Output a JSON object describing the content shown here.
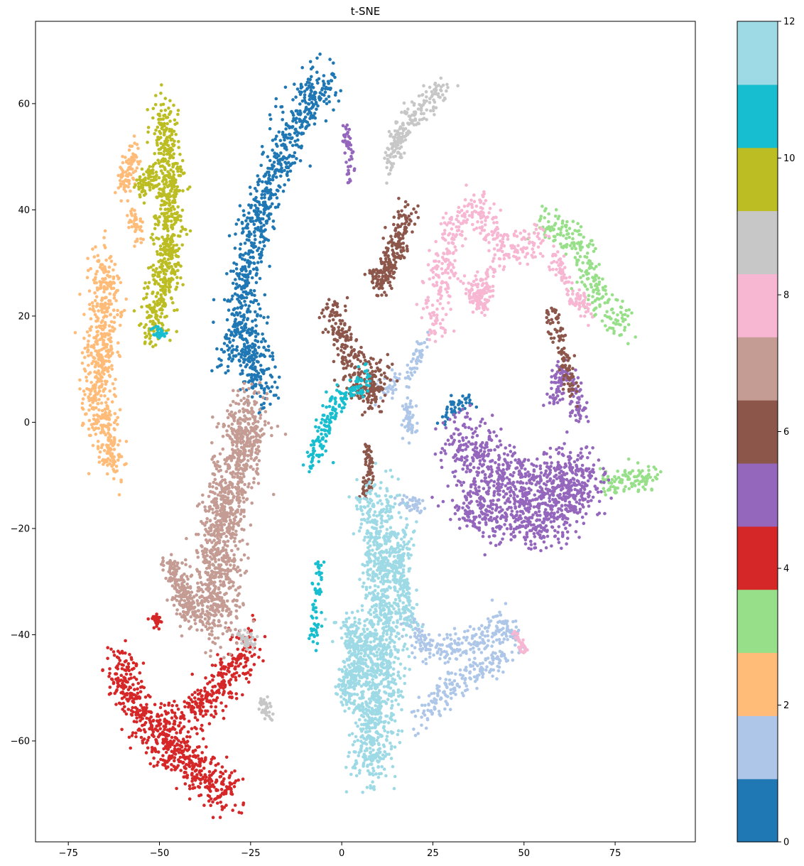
{
  "chart_data": {
    "type": "scatter",
    "title": "t-SNE",
    "xlabel": "",
    "ylabel": "",
    "xlim": [
      -84,
      97
    ],
    "ylim": [
      -79,
      75.5
    ],
    "xticks": [
      -75,
      -50,
      -25,
      0,
      25,
      50,
      75
    ],
    "yticks": [
      -60,
      -40,
      -20,
      0,
      20,
      40,
      60
    ],
    "xtick_labels": [
      "−75",
      "−50",
      "−25",
      "0",
      "25",
      "50",
      "75"
    ],
    "ytick_labels": [
      "−60",
      "−40",
      "−20",
      "0",
      "20",
      "40",
      "60"
    ],
    "grid": false,
    "colorbar": {
      "colormap": "tab20",
      "range": [
        0,
        12
      ],
      "ticks": [
        0,
        2,
        4,
        6,
        8,
        10,
        12
      ],
      "tick_labels": [
        "0",
        "2",
        "4",
        "6",
        "8",
        "10",
        "12"
      ],
      "colors": [
        "#1f77b4",
        "#aec7e8",
        "#ffbb78",
        "#98df8a",
        "#d62728",
        "#9467bd",
        "#8c564b",
        "#c49c94",
        "#f7b6d2",
        "#c7c7c7",
        "#bcbd22",
        "#17becf",
        "#9edae5"
      ]
    },
    "clusters": [
      {
        "label": 0,
        "n": 900,
        "path": [
          [
            -22,
            5
          ],
          [
            -25,
            15
          ],
          [
            -27,
            25
          ],
          [
            -24,
            35
          ],
          [
            -20,
            45
          ],
          [
            -15,
            52
          ],
          [
            -10,
            60
          ],
          [
            -3,
            65
          ]
        ],
        "width": 4.2
      },
      {
        "label": 0,
        "n": 60,
        "path": [
          [
            -33,
            10
          ],
          [
            -30,
            15
          ],
          [
            -27,
            18
          ]
        ],
        "width": 3
      },
      {
        "label": 0,
        "n": 45,
        "path": [
          [
            27,
            -1
          ],
          [
            30,
            3
          ],
          [
            36,
            4
          ]
        ],
        "width": 1.3
      },
      {
        "label": 1,
        "n": 80,
        "path": [
          [
            23,
            16
          ],
          [
            20,
            10
          ],
          [
            14,
            7
          ],
          [
            8,
            5
          ]
        ],
        "width": 1.8
      },
      {
        "label": 1,
        "n": 60,
        "path": [
          [
            18,
            3
          ],
          [
            19,
            -2
          ]
        ],
        "width": 1.5
      },
      {
        "label": 1,
        "n": 40,
        "path": [
          [
            16,
            -15
          ],
          [
            22,
            -16
          ]
        ],
        "width": 1.6
      },
      {
        "label": 1,
        "n": 260,
        "path": [
          [
            18,
            -38
          ],
          [
            25,
            -43
          ],
          [
            35,
            -42
          ],
          [
            45,
            -38
          ],
          [
            48,
            -42
          ]
        ],
        "width": 2.8
      },
      {
        "label": 1,
        "n": 180,
        "path": [
          [
            20,
            -57
          ],
          [
            27,
            -51
          ],
          [
            37,
            -47
          ],
          [
            45,
            -44
          ]
        ],
        "width": 2.6
      },
      {
        "label": 2,
        "n": 600,
        "path": [
          [
            -62,
            -8
          ],
          [
            -65,
            -1
          ],
          [
            -68,
            5
          ],
          [
            -65,
            12
          ],
          [
            -67,
            18
          ],
          [
            -64,
            24
          ],
          [
            -66,
            30
          ]
        ],
        "width": 3.8
      },
      {
        "label": 2,
        "n": 90,
        "path": [
          [
            -60,
            44
          ],
          [
            -58,
            48
          ],
          [
            -57,
            52
          ]
        ],
        "width": 2
      },
      {
        "label": 2,
        "n": 40,
        "path": [
          [
            -58,
            40
          ],
          [
            -55,
            34
          ]
        ],
        "width": 1.6
      },
      {
        "label": 3,
        "n": 250,
        "path": [
          [
            54,
            37
          ],
          [
            62,
            36
          ],
          [
            67,
            30
          ],
          [
            71,
            22
          ],
          [
            78,
            18
          ]
        ],
        "width": 3
      },
      {
        "label": 3,
        "n": 110,
        "path": [
          [
            72,
            -11
          ],
          [
            80,
            -11
          ],
          [
            86,
            -11
          ]
        ],
        "width": 2.4
      },
      {
        "label": 4,
        "n": 600,
        "path": [
          [
            -62,
            -45
          ],
          [
            -55,
            -55
          ],
          [
            -48,
            -61
          ],
          [
            -38,
            -67
          ],
          [
            -30,
            -70
          ]
        ],
        "width": 4.2
      },
      {
        "label": 4,
        "n": 330,
        "path": [
          [
            -47,
            -58
          ],
          [
            -40,
            -54
          ],
          [
            -33,
            -50
          ],
          [
            -28,
            -44
          ],
          [
            -25,
            -41
          ]
        ],
        "width": 3.8
      },
      {
        "label": 4,
        "n": 30,
        "path": [
          [
            -52,
            -36
          ],
          [
            -50,
            -38
          ]
        ],
        "width": 1.2
      },
      {
        "label": 5,
        "n": 1150,
        "path": [
          [
            30,
            -2
          ],
          [
            40,
            -8
          ],
          [
            50,
            -12
          ],
          [
            62,
            -10
          ],
          [
            67,
            -12
          ],
          [
            55,
            -18
          ],
          [
            40,
            -17
          ],
          [
            33,
            -14
          ]
        ],
        "width": 5.5
      },
      {
        "label": 5,
        "n": 140,
        "path": [
          [
            58,
            4
          ],
          [
            61,
            10
          ],
          [
            64,
            6
          ],
          [
            66,
            0
          ]
        ],
        "width": 2.3
      },
      {
        "label": 5,
        "n": 45,
        "path": [
          [
            1,
            56
          ],
          [
            2,
            49
          ],
          [
            2,
            45
          ]
        ],
        "width": 1.2
      },
      {
        "label": 6,
        "n": 300,
        "path": [
          [
            -3,
            22
          ],
          [
            1,
            15
          ],
          [
            4,
            8
          ],
          [
            8,
            4
          ],
          [
            10,
            11
          ]
        ],
        "width": 3.4
      },
      {
        "label": 6,
        "n": 230,
        "path": [
          [
            10,
            25
          ],
          [
            14,
            32
          ],
          [
            18,
            39
          ]
        ],
        "width": 2.8
      },
      {
        "label": 6,
        "n": 110,
        "path": [
          [
            57,
            21
          ],
          [
            60,
            15
          ],
          [
            62,
            9
          ],
          [
            64,
            5
          ]
        ],
        "width": 2
      },
      {
        "label": 6,
        "n": 70,
        "path": [
          [
            7,
            -4
          ],
          [
            8,
            -10
          ],
          [
            6,
            -14
          ]
        ],
        "width": 1.5
      },
      {
        "label": 7,
        "n": 1100,
        "path": [
          [
            -25,
            3
          ],
          [
            -28,
            -6
          ],
          [
            -32,
            -16
          ],
          [
            -34,
            -26
          ],
          [
            -36,
            -34
          ],
          [
            -33,
            -38
          ]
        ],
        "width": 5.5
      },
      {
        "label": 7,
        "n": 200,
        "path": [
          [
            -47,
            -26
          ],
          [
            -44,
            -32
          ],
          [
            -40,
            -37
          ]
        ],
        "width": 2.8
      },
      {
        "label": 8,
        "n": 380,
        "path": [
          [
            25,
            17
          ],
          [
            27,
            26
          ],
          [
            30,
            36
          ],
          [
            38,
            41
          ],
          [
            43,
            34
          ],
          [
            46,
            32
          ],
          [
            54,
            35
          ]
        ],
        "width": 3.4
      },
      {
        "label": 8,
        "n": 140,
        "path": [
          [
            35,
            26
          ],
          [
            38,
            22
          ],
          [
            40,
            28
          ]
        ],
        "width": 2.3
      },
      {
        "label": 8,
        "n": 100,
        "path": [
          [
            58,
            32
          ],
          [
            63,
            24
          ],
          [
            68,
            21
          ]
        ],
        "width": 1.8
      },
      {
        "label": 8,
        "n": 30,
        "path": [
          [
            48,
            -40
          ],
          [
            50,
            -43
          ]
        ],
        "width": 1.2
      },
      {
        "label": 9,
        "n": 200,
        "path": [
          [
            13,
            48
          ],
          [
            17,
            56
          ],
          [
            22,
            59
          ],
          [
            28,
            63
          ]
        ],
        "width": 2.4
      },
      {
        "label": 9,
        "n": 40,
        "path": [
          [
            -22,
            -52
          ],
          [
            -20,
            -55
          ]
        ],
        "width": 1.3
      },
      {
        "label": 9,
        "n": 40,
        "path": [
          [
            -28,
            -40
          ],
          [
            -24,
            -42
          ]
        ],
        "width": 1.3
      },
      {
        "label": 10,
        "n": 680,
        "path": [
          [
            -52,
            17
          ],
          [
            -50,
            24
          ],
          [
            -47,
            31
          ],
          [
            -48,
            38
          ],
          [
            -47,
            45
          ],
          [
            -48,
            52
          ],
          [
            -49,
            59
          ]
        ],
        "width": 3.6
      },
      {
        "label": 10,
        "n": 80,
        "path": [
          [
            -55,
            44
          ],
          [
            -52,
            47
          ]
        ],
        "width": 1.7
      },
      {
        "label": 11,
        "n": 180,
        "path": [
          [
            -9,
            -8
          ],
          [
            -6,
            -3
          ],
          [
            -2,
            3
          ],
          [
            3,
            6
          ],
          [
            8,
            9
          ]
        ],
        "width": 2.3
      },
      {
        "label": 11,
        "n": 60,
        "path": [
          [
            -6,
            -27
          ],
          [
            -7,
            -32
          ],
          [
            -7,
            -38
          ],
          [
            -8,
            -42
          ]
        ],
        "width": 1.3
      },
      {
        "label": 11,
        "n": 25,
        "path": [
          [
            -51,
            17
          ],
          [
            -49,
            16
          ]
        ],
        "width": 1.2
      },
      {
        "label": 12,
        "n": 1200,
        "path": [
          [
            9,
            -14
          ],
          [
            11,
            -22
          ],
          [
            12,
            -32
          ],
          [
            11,
            -41
          ],
          [
            10,
            -50
          ],
          [
            9,
            -58
          ],
          [
            8,
            -65
          ]
        ],
        "width": 5.5
      },
      {
        "label": 12,
        "n": 280,
        "path": [
          [
            2,
            -38
          ],
          [
            5,
            -45
          ],
          [
            0,
            -52
          ]
        ],
        "width": 3.2
      },
      {
        "label": 12,
        "n": 150,
        "path": [
          [
            18,
            -20
          ],
          [
            16,
            -28
          ],
          [
            18,
            -38
          ]
        ],
        "width": 2.6
      }
    ]
  }
}
